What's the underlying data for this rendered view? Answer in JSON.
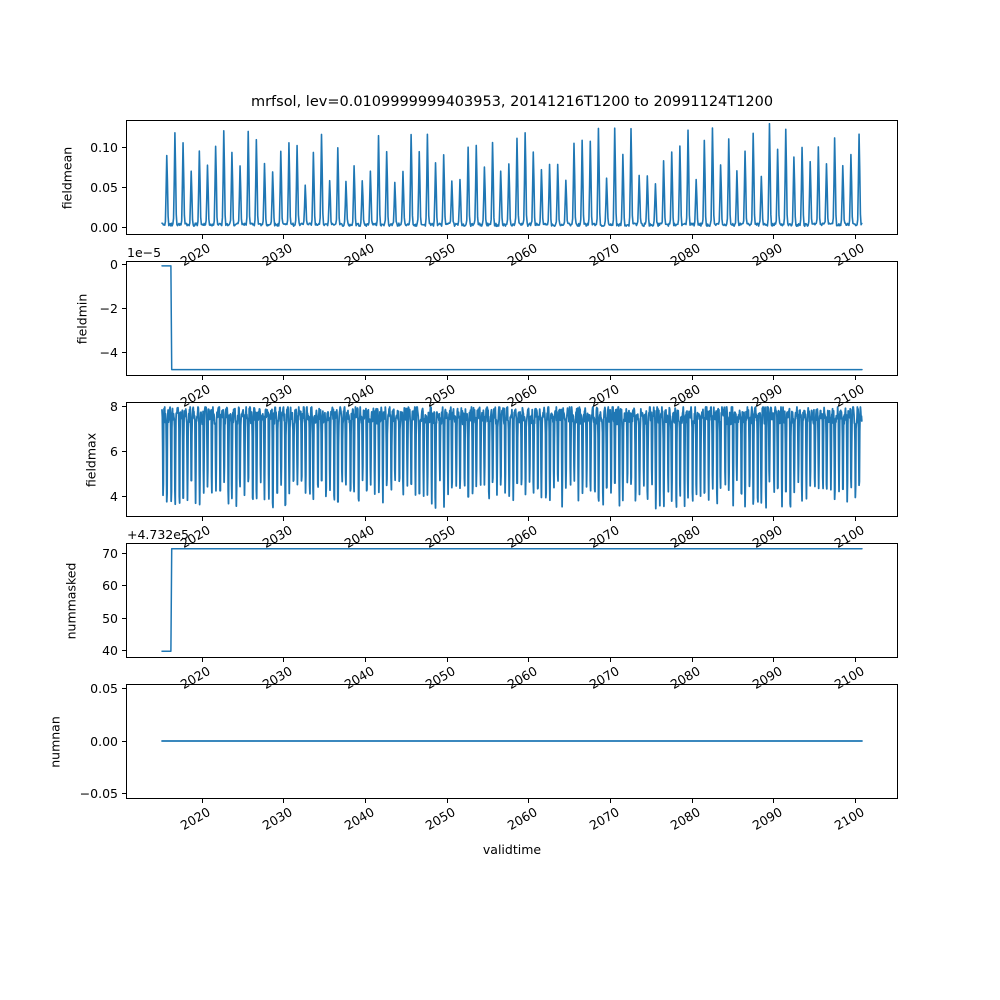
{
  "chart_data": {
    "type": "line",
    "title": "mrfsol, lev=0.0109999999403953, 20141216T1200 to 20991124T1200",
    "xlabel": "validtime",
    "line_color": "#1f77b4",
    "spine_color": "#000000",
    "background": "#ffffff",
    "grid": false,
    "legend": "none",
    "x_range_data": [
      2014.96,
      2100.9
    ],
    "xlim": [
      2010.66,
      2105.2
    ],
    "xticks": [
      {
        "v": 2020,
        "label": "2020"
      },
      {
        "v": 2030,
        "label": "2030"
      },
      {
        "v": 2040,
        "label": "2040"
      },
      {
        "v": 2050,
        "label": "2050"
      },
      {
        "v": 2060,
        "label": "2060"
      },
      {
        "v": 2070,
        "label": "2070"
      },
      {
        "v": 2080,
        "label": "2080"
      },
      {
        "v": 2090,
        "label": "2090"
      },
      {
        "v": 2100,
        "label": "2100"
      }
    ],
    "subplots": [
      {
        "ylabel": "fieldmean",
        "ylim": [
          -0.0088,
          0.135
        ],
        "yticks": [
          {
            "v": 0.0,
            "label": "0.00"
          },
          {
            "v": 0.05,
            "label": "0.05"
          },
          {
            "v": 0.1,
            "label": "0.10"
          }
        ],
        "offset_text": "",
        "ylabel_cx": 67,
        "stroke_width": 1.6,
        "series": {
          "kind": "annual_spikes",
          "description": "annual narrow spikes, one per year, baseline near 0",
          "t_start": 2014.958,
          "t_end": 2100.9,
          "dt": 0.0833333,
          "baseline": 0.001,
          "noise": 0.004,
          "peak_center_frac": 0.55,
          "peak_sigma": 0.105,
          "peak_min": 0.05,
          "peak_max": 0.128,
          "seed": 42
        }
      },
      {
        "ylabel": "fieldmin",
        "ylim": [
          -5.05e-05,
          1.8e-06
        ],
        "yticks": [
          {
            "v": 0,
            "label": "0"
          },
          {
            "v": -2e-05,
            "label": "−2"
          },
          {
            "v": -4e-05,
            "label": "−4"
          }
        ],
        "offset_text": "1e−5",
        "ylabel_cx": 82,
        "stroke_width": 1.5,
        "series": {
          "kind": "points",
          "description": "step from 0 down to -4.8e-5 at ~2016.1, then constant",
          "x": [
            2014.96,
            2016.05,
            2016.15,
            2100.9
          ],
          "y": [
            0,
            0,
            -4.8e-05,
            -4.8e-05
          ]
        }
      },
      {
        "ylabel": "fieldmax",
        "ylim": [
          3.07,
          8.18
        ],
        "yticks": [
          {
            "v": 4,
            "label": "4"
          },
          {
            "v": 6,
            "label": "6"
          },
          {
            "v": 8,
            "label": "8"
          }
        ],
        "offset_text": "",
        "ylabel_cx": 91,
        "stroke_width": 1.8,
        "series": {
          "kind": "seasonal_band",
          "description": "dense oscillation: tops 7.3-8.0 with two dips per year down to 3.4-4.7",
          "t_start": 2014.958,
          "t_end": 2100.9,
          "dt": 0.0416667,
          "top_min": 7.35,
          "top_max": 8.0,
          "dip_min": 3.4,
          "dip_max": 4.7,
          "seed": 7
        }
      },
      {
        "ylabel": "nummasked",
        "ylim": [
          37.7,
          73.1
        ],
        "y_offset": 473200,
        "yticks": [
          {
            "v": 40,
            "label": "40"
          },
          {
            "v": 50,
            "label": "50"
          },
          {
            "v": 60,
            "label": "60"
          },
          {
            "v": 70,
            "label": "70"
          }
        ],
        "offset_text": "+4.732e5",
        "ylabel_cx": 71,
        "stroke_width": 1.5,
        "series": {
          "kind": "points",
          "description": "step from 473239.5 up to 473271.6 at ~2016.1, then constant",
          "x": [
            2014.96,
            2016.05,
            2016.15,
            2100.9
          ],
          "y": [
            473239.5,
            473239.5,
            473271.6,
            473271.6
          ]
        }
      },
      {
        "ylabel": "numnan",
        "ylim": [
          -0.0552,
          0.0543
        ],
        "yticks": [
          {
            "v": -0.05,
            "label": "−0.05"
          },
          {
            "v": 0.0,
            "label": "0.00"
          },
          {
            "v": 0.05,
            "label": "0.05"
          }
        ],
        "offset_text": "",
        "ylabel_cx": 55,
        "stroke_width": 1.8,
        "series": {
          "kind": "points",
          "description": "constant zero over whole period",
          "x": [
            2014.96,
            2100.9
          ],
          "y": [
            0,
            0
          ]
        }
      }
    ]
  }
}
